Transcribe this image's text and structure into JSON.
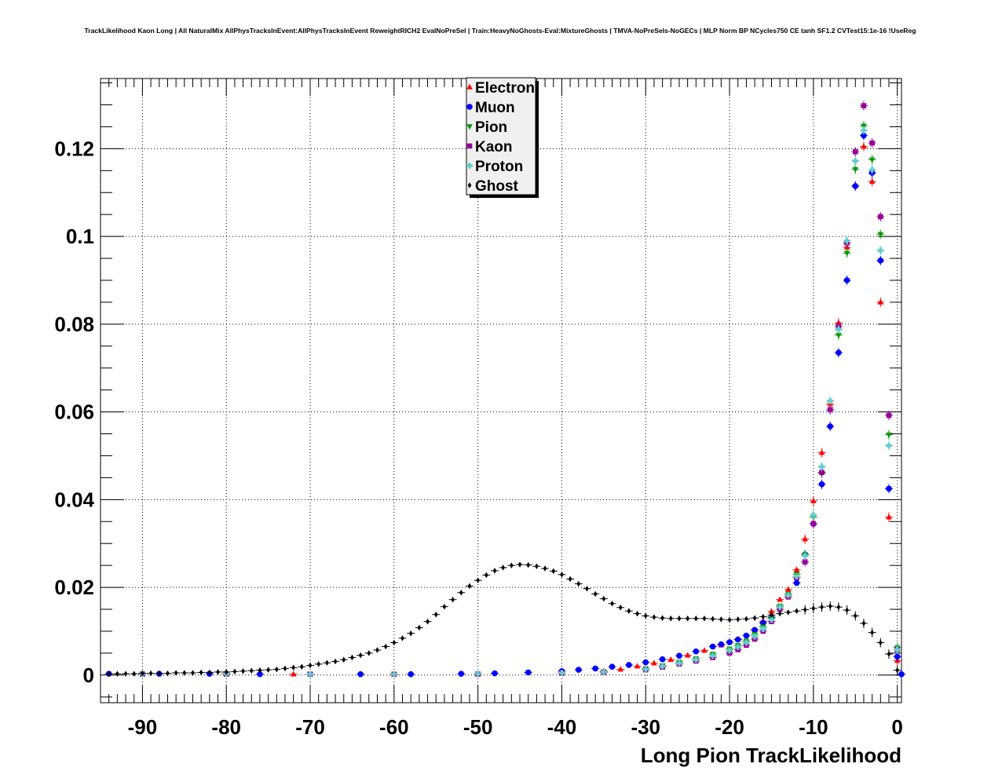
{
  "chart_data": {
    "type": "scatter",
    "title": "TrackLikelihood Kaon Long | All NaturalMix AllPhysTracksInEvent:AllPhysTracksInEvent ReweightRICH2 EvalNoPreSel | Train:HeavyNoGhosts-Eval:MixtureGhosts | TMVA-NoPreSels-NoGECs | MLP Norm BP NCycles750 CE tanh SF1.2 CVTest15:1e-16 !UseReg",
    "xlabel": "Long Pion TrackLikelihood",
    "ylabel": "",
    "xlim": [
      -95,
      0.5
    ],
    "ylim": [
      -0.0063,
      0.136
    ],
    "xticks": [
      -90,
      -80,
      -70,
      -60,
      -50,
      -40,
      -30,
      -20,
      -10,
      0
    ],
    "xtick_labels": [
      "-90",
      "-80",
      "-70",
      "-60",
      "-50",
      "-40",
      "-30",
      "-20",
      "-10",
      "0"
    ],
    "yticks": [
      0,
      0.02,
      0.04,
      0.06,
      0.08,
      0.1,
      0.12
    ],
    "ytick_labels": [
      "0",
      "0.02",
      "0.04",
      "0.06",
      "0.08",
      "0.1",
      "0.12"
    ],
    "grid": true,
    "legend_position": "top-center",
    "series": [
      {
        "name": "Electron",
        "color": "#ff0000",
        "marker": "triangle-up",
        "points": [
          [
            -80,
            0.0004
          ],
          [
            -72,
            0.0002
          ],
          [
            -60,
            0.0001
          ],
          [
            -50,
            0.0002
          ],
          [
            -40,
            0.0005
          ],
          [
            -35,
            0.0009
          ],
          [
            -33,
            0.0013
          ],
          [
            -31,
            0.002
          ],
          [
            -29,
            0.0027
          ],
          [
            -27,
            0.0035
          ],
          [
            -25,
            0.0045
          ],
          [
            -23,
            0.0056
          ],
          [
            -21,
            0.0068
          ],
          [
            -19,
            0.0082
          ],
          [
            -17,
            0.0103
          ],
          [
            -16,
            0.0123
          ],
          [
            -15,
            0.0145
          ],
          [
            -14,
            0.0172
          ],
          [
            -13,
            0.0195
          ],
          [
            -12,
            0.024
          ],
          [
            -11,
            0.031
          ],
          [
            -10,
            0.0397
          ],
          [
            -9,
            0.0507
          ],
          [
            -8,
            0.0618
          ],
          [
            -7,
            0.0803
          ],
          [
            -6,
            0.0975
          ],
          [
            -5,
            0.1115
          ],
          [
            -4,
            0.1205
          ],
          [
            -3,
            0.1125
          ],
          [
            -2,
            0.085
          ],
          [
            -1,
            0.036
          ],
          [
            0,
            0.0033
          ]
        ]
      },
      {
        "name": "Muon",
        "color": "#0000ff",
        "marker": "circle",
        "points": [
          [
            -94,
            0.0003
          ],
          [
            -88,
            0.0003
          ],
          [
            -82,
            0.0003
          ],
          [
            -76,
            0.0002
          ],
          [
            -70,
            0.0002
          ],
          [
            -64,
            0.0002
          ],
          [
            -58,
            0.0002
          ],
          [
            -52,
            0.0003
          ],
          [
            -48,
            0.0004
          ],
          [
            -44,
            0.0006
          ],
          [
            -40,
            0.0009
          ],
          [
            -38,
            0.0012
          ],
          [
            -36,
            0.0015
          ],
          [
            -34,
            0.0019
          ],
          [
            -32,
            0.0023
          ],
          [
            -30,
            0.0029
          ],
          [
            -28,
            0.0036
          ],
          [
            -26,
            0.0044
          ],
          [
            -24,
            0.0054
          ],
          [
            -22,
            0.0065
          ],
          [
            -21,
            0.007
          ],
          [
            -20,
            0.0075
          ],
          [
            -19,
            0.0081
          ],
          [
            -18,
            0.009
          ],
          [
            -17,
            0.0103
          ],
          [
            -16,
            0.0119
          ],
          [
            -15,
            0.0132
          ],
          [
            -14,
            0.0155
          ],
          [
            -13,
            0.0182
          ],
          [
            -12,
            0.021
          ],
          [
            -11,
            0.0275
          ],
          [
            -10,
            0.0345
          ],
          [
            -9,
            0.0435
          ],
          [
            -8,
            0.0567
          ],
          [
            -7,
            0.0735
          ],
          [
            -6,
            0.09
          ],
          [
            -5,
            0.1115
          ],
          [
            -4,
            0.123
          ],
          [
            -3,
            0.1145
          ],
          [
            -2,
            0.0945
          ],
          [
            -1,
            0.0425
          ],
          [
            0,
            0.0042
          ],
          [
            0.5,
            0.0002
          ]
        ]
      },
      {
        "name": "Pion",
        "color": "#009900",
        "marker": "triangle-down",
        "points": [
          [
            -90,
            0.0003
          ],
          [
            -80,
            0.0003
          ],
          [
            -70,
            0.0002
          ],
          [
            -60,
            0.0002
          ],
          [
            -50,
            0.0003
          ],
          [
            -40,
            0.0005
          ],
          [
            -35,
            0.0008
          ],
          [
            -30,
            0.0015
          ],
          [
            -28,
            0.0022
          ],
          [
            -26,
            0.003
          ],
          [
            -24,
            0.0038
          ],
          [
            -22,
            0.0048
          ],
          [
            -20,
            0.006
          ],
          [
            -19,
            0.0068
          ],
          [
            -18,
            0.0078
          ],
          [
            -17,
            0.0093
          ],
          [
            -16,
            0.011
          ],
          [
            -15,
            0.013
          ],
          [
            -14,
            0.0158
          ],
          [
            -13,
            0.0185
          ],
          [
            -12,
            0.023
          ],
          [
            -11,
            0.0275
          ],
          [
            -10,
            0.036
          ],
          [
            -9,
            0.046
          ],
          [
            -8,
            0.0605
          ],
          [
            -7,
            0.0775
          ],
          [
            -6,
            0.0962
          ],
          [
            -5,
            0.1153
          ],
          [
            -4,
            0.1252
          ],
          [
            -3,
            0.1175
          ],
          [
            -2,
            0.1005
          ],
          [
            -1,
            0.0548
          ],
          [
            0,
            0.0063
          ]
        ]
      },
      {
        "name": "Kaon",
        "color": "#990099",
        "marker": "square",
        "points": [
          [
            -90,
            0.0002
          ],
          [
            -80,
            0.0002
          ],
          [
            -70,
            0.0002
          ],
          [
            -60,
            0.0002
          ],
          [
            -50,
            0.0002
          ],
          [
            -40,
            0.0004
          ],
          [
            -35,
            0.0006
          ],
          [
            -30,
            0.0012
          ],
          [
            -28,
            0.0018
          ],
          [
            -26,
            0.0025
          ],
          [
            -24,
            0.0032
          ],
          [
            -22,
            0.004
          ],
          [
            -20,
            0.005
          ],
          [
            -19,
            0.0058
          ],
          [
            -18,
            0.0068
          ],
          [
            -17,
            0.0082
          ],
          [
            -16,
            0.01
          ],
          [
            -15,
            0.0122
          ],
          [
            -14,
            0.015
          ],
          [
            -13,
            0.0178
          ],
          [
            -12,
            0.0222
          ],
          [
            -11,
            0.0258
          ],
          [
            -10,
            0.0345
          ],
          [
            -9,
            0.0462
          ],
          [
            -8,
            0.0605
          ],
          [
            -7,
            0.0795
          ],
          [
            -6,
            0.0985
          ],
          [
            -5,
            0.1193
          ],
          [
            -4,
            0.1298
          ],
          [
            -3,
            0.1213
          ],
          [
            -2,
            0.1045
          ],
          [
            -1,
            0.0592
          ],
          [
            0,
            0.0058
          ]
        ]
      },
      {
        "name": "Proton",
        "color": "#66cccc",
        "marker": "cross",
        "points": [
          [
            -90,
            0.0003
          ],
          [
            -80,
            0.0003
          ],
          [
            -70,
            0.0002
          ],
          [
            -60,
            0.0002
          ],
          [
            -50,
            0.0003
          ],
          [
            -40,
            0.0005
          ],
          [
            -35,
            0.0007
          ],
          [
            -30,
            0.0013
          ],
          [
            -28,
            0.002
          ],
          [
            -26,
            0.0027
          ],
          [
            -24,
            0.0035
          ],
          [
            -22,
            0.0044
          ],
          [
            -20,
            0.0056
          ],
          [
            -19,
            0.0064
          ],
          [
            -18,
            0.0074
          ],
          [
            -17,
            0.0088
          ],
          [
            -16,
            0.0105
          ],
          [
            -15,
            0.0126
          ],
          [
            -14,
            0.0155
          ],
          [
            -13,
            0.0182
          ],
          [
            -12,
            0.0225
          ],
          [
            -11,
            0.0272
          ],
          [
            -10,
            0.0365
          ],
          [
            -9,
            0.0475
          ],
          [
            -8,
            0.0625
          ],
          [
            -7,
            0.0788
          ],
          [
            -6,
            0.099
          ],
          [
            -5,
            0.1172
          ],
          [
            -4,
            0.1242
          ],
          [
            -3,
            0.1152
          ],
          [
            -2,
            0.0968
          ],
          [
            -1,
            0.0523
          ],
          [
            0,
            0.0058
          ]
        ]
      },
      {
        "name": "Ghost",
        "color": "#000000",
        "marker": "diamond",
        "points": [
          [
            -94,
            0.0003
          ],
          [
            -93,
            0.0003
          ],
          [
            -92,
            0.0003
          ],
          [
            -91,
            0.0003
          ],
          [
            -90,
            0.0004
          ],
          [
            -89,
            0.0004
          ],
          [
            -88,
            0.0004
          ],
          [
            -87,
            0.0004
          ],
          [
            -86,
            0.0005
          ],
          [
            -85,
            0.0005
          ],
          [
            -84,
            0.0005
          ],
          [
            -83,
            0.0006
          ],
          [
            -82,
            0.0006
          ],
          [
            -81,
            0.0007
          ],
          [
            -80,
            0.0007
          ],
          [
            -79,
            0.0008
          ],
          [
            -78,
            0.0009
          ],
          [
            -77,
            0.001
          ],
          [
            -76,
            0.0011
          ],
          [
            -75,
            0.0012
          ],
          [
            -74,
            0.0013
          ],
          [
            -73,
            0.0015
          ],
          [
            -72,
            0.0017
          ],
          [
            -71,
            0.0019
          ],
          [
            -70,
            0.0022
          ],
          [
            -69,
            0.0025
          ],
          [
            -68,
            0.0028
          ],
          [
            -67,
            0.0031
          ],
          [
            -66,
            0.0035
          ],
          [
            -65,
            0.004
          ],
          [
            -64,
            0.0045
          ],
          [
            -63,
            0.005
          ],
          [
            -62,
            0.0057
          ],
          [
            -61,
            0.0065
          ],
          [
            -60,
            0.0074
          ],
          [
            -59,
            0.0084
          ],
          [
            -58,
            0.0095
          ],
          [
            -57,
            0.0108
          ],
          [
            -56,
            0.0122
          ],
          [
            -55,
            0.0138
          ],
          [
            -54,
            0.0156
          ],
          [
            -53,
            0.0172
          ],
          [
            -52,
            0.0188
          ],
          [
            -51,
            0.0203
          ],
          [
            -50,
            0.0216
          ],
          [
            -49,
            0.0228
          ],
          [
            -48,
            0.0238
          ],
          [
            -47,
            0.0245
          ],
          [
            -46,
            0.025
          ],
          [
            -45,
            0.0252
          ],
          [
            -44,
            0.0251
          ],
          [
            -43,
            0.0248
          ],
          [
            -42,
            0.0243
          ],
          [
            -41,
            0.0237
          ],
          [
            -40,
            0.0229
          ],
          [
            -39,
            0.0219
          ],
          [
            -38,
            0.0208
          ],
          [
            -37,
            0.0197
          ],
          [
            -36,
            0.0185
          ],
          [
            -35,
            0.0174
          ],
          [
            -34,
            0.0163
          ],
          [
            -33,
            0.0154
          ],
          [
            -32,
            0.0146
          ],
          [
            -31,
            0.014
          ],
          [
            -30,
            0.0135
          ],
          [
            -29,
            0.0132
          ],
          [
            -28,
            0.013
          ],
          [
            -27,
            0.0129
          ],
          [
            -26,
            0.0129
          ],
          [
            -25,
            0.0129
          ],
          [
            -24,
            0.0129
          ],
          [
            -23,
            0.0129
          ],
          [
            -22,
            0.0128
          ],
          [
            -21,
            0.0127
          ],
          [
            -20,
            0.0126
          ],
          [
            -19,
            0.0127
          ],
          [
            -18,
            0.0128
          ],
          [
            -17,
            0.013
          ],
          [
            -16,
            0.0133
          ],
          [
            -15,
            0.0137
          ],
          [
            -14,
            0.014
          ],
          [
            -13,
            0.0143
          ],
          [
            -12,
            0.0146
          ],
          [
            -11,
            0.0149
          ],
          [
            -10,
            0.0152
          ],
          [
            -9,
            0.0155
          ],
          [
            -8,
            0.0157
          ],
          [
            -7,
            0.0155
          ],
          [
            -6,
            0.0148
          ],
          [
            -5,
            0.0135
          ],
          [
            -4,
            0.0118
          ],
          [
            -3,
            0.0097
          ],
          [
            -2,
            0.0074
          ],
          [
            -1,
            0.0048
          ],
          [
            0,
            0.0011
          ]
        ]
      }
    ]
  }
}
